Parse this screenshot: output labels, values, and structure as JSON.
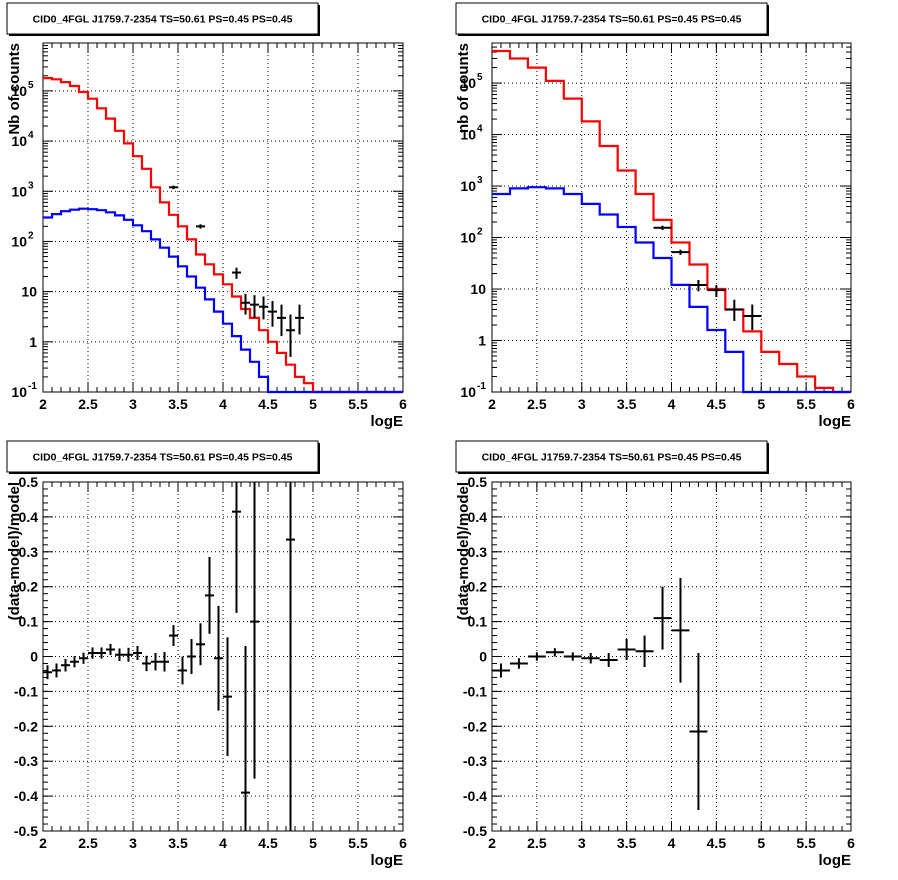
{
  "chart_data": [
    {
      "type": "line",
      "title": "CID0_4FGL J1759.7-2354 TS=50.61 PS=0.45 PS=0.45",
      "xlabel": "logE",
      "ylabel": "Nb of counts",
      "xlim": [
        2,
        6
      ],
      "ylim": [
        0.1,
        900000
      ],
      "yscale": "log",
      "grid": true,
      "xticks": [
        "2",
        "2.5",
        "3",
        "3.5",
        "4",
        "4.5",
        "5",
        "5.5",
        "6"
      ],
      "yticks": [
        {
          "value": 0.1,
          "base": "10",
          "exp": "-1"
        },
        {
          "value": 1,
          "base": "1",
          "exp": ""
        },
        {
          "value": 10,
          "base": "10",
          "exp": ""
        },
        {
          "value": 100,
          "base": "10",
          "exp": "2"
        },
        {
          "value": 1000,
          "base": "10",
          "exp": "3"
        },
        {
          "value": 10000,
          "base": "10",
          "exp": "4"
        },
        {
          "value": 100000,
          "base": "10",
          "exp": "5"
        }
      ],
      "series": [
        {
          "color": "#ff0000",
          "step": 0.1,
          "x_start": 2.0,
          "values": [
            180000,
            170000,
            150000,
            125000,
            95000,
            70000,
            45000,
            28000,
            16000,
            9000,
            5000,
            2800,
            1200,
            600,
            340,
            200,
            110,
            55,
            35,
            22,
            14,
            8,
            4.5,
            3,
            1.7,
            1,
            0.6,
            0.35,
            0.2,
            0.15,
            0.1,
            0.1,
            0.1,
            0.1,
            0.1,
            0.1,
            0.1,
            0.1,
            0.1,
            0.1
          ]
        },
        {
          "color": "#0000ff",
          "step": 0.1,
          "x_start": 2.0,
          "values": [
            300,
            350,
            400,
            430,
            450,
            440,
            420,
            380,
            330,
            270,
            210,
            160,
            110,
            75,
            50,
            32,
            20,
            12,
            7,
            4,
            2.3,
            1.3,
            0.7,
            0.4,
            0.2,
            0.1,
            0.1,
            0.1,
            0.1,
            0.1,
            0.1,
            0.1,
            0.1,
            0.1,
            0.1,
            0.1,
            0.1,
            0.1,
            0.1,
            0.1
          ]
        }
      ],
      "points": [
        {
          "x": 3.45,
          "y": 1200,
          "ylo": 1100,
          "yhi": 1300,
          "xerr": 0.05
        },
        {
          "x": 3.75,
          "y": 200,
          "ylo": 180,
          "yhi": 220,
          "xerr": 0.05
        },
        {
          "x": 4.15,
          "y": 24,
          "ylo": 18,
          "yhi": 30,
          "xerr": 0.05
        },
        {
          "x": 4.25,
          "y": 6,
          "ylo": 3.5,
          "yhi": 9,
          "xerr": 0.05
        },
        {
          "x": 4.35,
          "y": 5.5,
          "ylo": 3,
          "yhi": 8.5,
          "xerr": 0.05
        },
        {
          "x": 4.45,
          "y": 5,
          "ylo": 2.8,
          "yhi": 8,
          "xerr": 0.05
        },
        {
          "x": 4.55,
          "y": 4,
          "ylo": 2,
          "yhi": 6.5,
          "xerr": 0.05
        },
        {
          "x": 4.65,
          "y": 3,
          "ylo": 1.3,
          "yhi": 5.5,
          "xerr": 0.05
        },
        {
          "x": 4.75,
          "y": 1.7,
          "ylo": 0.5,
          "yhi": 3.5,
          "xerr": 0.05
        },
        {
          "x": 4.85,
          "y": 3,
          "ylo": 1.4,
          "yhi": 5.5,
          "xerr": 0.05
        }
      ]
    },
    {
      "type": "line",
      "title": "CID0_4FGL J1759.7-2354 TS=50.61 PS=0.45 PS=0.45",
      "xlabel": "logE",
      "ylabel": "nb of counts",
      "xlim": [
        2,
        6
      ],
      "ylim": [
        0.1,
        600000
      ],
      "yscale": "log",
      "grid": true,
      "xticks": [
        "2",
        "2.5",
        "3",
        "3.5",
        "4",
        "4.5",
        "5",
        "5.5",
        "6"
      ],
      "yticks": [
        {
          "value": 0.1,
          "base": "10",
          "exp": "-1"
        },
        {
          "value": 1,
          "base": "1",
          "exp": ""
        },
        {
          "value": 10,
          "base": "10",
          "exp": ""
        },
        {
          "value": 100,
          "base": "10",
          "exp": "2"
        },
        {
          "value": 1000,
          "base": "10",
          "exp": "3"
        },
        {
          "value": 10000,
          "base": "10",
          "exp": "4"
        },
        {
          "value": 100000,
          "base": "10",
          "exp": "5"
        }
      ],
      "series": [
        {
          "color": "#ff0000",
          "step": 0.2,
          "x_start": 2.0,
          "values": [
            420000,
            300000,
            200000,
            110000,
            50000,
            18000,
            6000,
            2000,
            700,
            220,
            80,
            30,
            10,
            4,
            1.5,
            0.6,
            0.35,
            0.2,
            0.12,
            0.1
          ]
        },
        {
          "color": "#0000ff",
          "step": 0.2,
          "x_start": 2.0,
          "values": [
            700,
            900,
            950,
            900,
            700,
            450,
            280,
            160,
            80,
            40,
            12,
            4.5,
            1.6,
            0.6,
            0.1,
            0.1,
            0.1,
            0.1,
            0.1,
            0.1
          ]
        }
      ],
      "points": [
        {
          "x": 3.9,
          "y": 155,
          "ylo": 140,
          "yhi": 170,
          "xerr": 0.1
        },
        {
          "x": 4.1,
          "y": 52,
          "ylo": 46,
          "yhi": 58,
          "xerr": 0.1
        },
        {
          "x": 4.3,
          "y": 12,
          "ylo": 9,
          "yhi": 15,
          "xerr": 0.1
        },
        {
          "x": 4.5,
          "y": 9.5,
          "ylo": 7,
          "yhi": 12,
          "xerr": 0.1
        },
        {
          "x": 4.7,
          "y": 4,
          "ylo": 2.4,
          "yhi": 6.2,
          "xerr": 0.1
        },
        {
          "x": 4.9,
          "y": 3,
          "ylo": 1.6,
          "yhi": 5,
          "xerr": 0.1
        }
      ]
    },
    {
      "type": "scatter",
      "title": "CID0_4FGL J1759.7-2354 TS=50.61 PS=0.45 PS=0.45",
      "xlabel": "logE",
      "ylabel": "(data-model)/model",
      "xlim": [
        2,
        6
      ],
      "ylim": [
        -0.5,
        0.5
      ],
      "yscale": "linear",
      "grid": true,
      "xticks": [
        "2",
        "2.5",
        "3",
        "3.5",
        "4",
        "4.5",
        "5",
        "5.5",
        "6"
      ],
      "yticks": [
        "0.5",
        "0.4",
        "0.3",
        "0.2",
        "0.1",
        "0",
        "-0.1",
        "-0.2",
        "-0.3",
        "-0.4",
        "-0.5"
      ],
      "points": [
        {
          "x": 2.05,
          "y": -0.045,
          "err": 0.02,
          "xerr": 0.05
        },
        {
          "x": 2.15,
          "y": -0.04,
          "err": 0.02,
          "xerr": 0.05
        },
        {
          "x": 2.25,
          "y": -0.025,
          "err": 0.018,
          "xerr": 0.05
        },
        {
          "x": 2.35,
          "y": -0.015,
          "err": 0.016,
          "xerr": 0.05
        },
        {
          "x": 2.45,
          "y": -0.005,
          "err": 0.016,
          "xerr": 0.05
        },
        {
          "x": 2.55,
          "y": 0.01,
          "err": 0.016,
          "xerr": 0.05
        },
        {
          "x": 2.65,
          "y": 0.01,
          "err": 0.016,
          "xerr": 0.05
        },
        {
          "x": 2.75,
          "y": 0.02,
          "err": 0.016,
          "xerr": 0.05
        },
        {
          "x": 2.85,
          "y": 0.005,
          "err": 0.018,
          "xerr": 0.05
        },
        {
          "x": 2.95,
          "y": 0.005,
          "err": 0.02,
          "xerr": 0.05
        },
        {
          "x": 3.05,
          "y": 0.01,
          "err": 0.02,
          "xerr": 0.05
        },
        {
          "x": 3.15,
          "y": -0.02,
          "err": 0.022,
          "xerr": 0.05
        },
        {
          "x": 3.25,
          "y": -0.015,
          "err": 0.025,
          "xerr": 0.05
        },
        {
          "x": 3.35,
          "y": -0.015,
          "err": 0.028,
          "xerr": 0.05
        },
        {
          "x": 3.45,
          "y": 0.06,
          "err": 0.03,
          "xerr": 0.05
        },
        {
          "x": 3.55,
          "y": -0.04,
          "err": 0.04,
          "xerr": 0.05
        },
        {
          "x": 3.65,
          "y": 0.0,
          "err": 0.05,
          "xerr": 0.05
        },
        {
          "x": 3.75,
          "y": 0.035,
          "err": 0.06,
          "xerr": 0.05
        },
        {
          "x": 3.85,
          "y": 0.175,
          "err": 0.11,
          "xerr": 0.05
        },
        {
          "x": 3.95,
          "y": -0.005,
          "err": 0.15,
          "xerr": 0.05
        },
        {
          "x": 4.05,
          "y": -0.115,
          "err": 0.17,
          "xerr": 0.05
        },
        {
          "x": 4.15,
          "y": 0.415,
          "err": 0.29,
          "xerr": 0.05
        },
        {
          "x": 4.25,
          "y": -0.39,
          "err": 0.42,
          "xerr": 0.05
        },
        {
          "x": 4.35,
          "y": 0.1,
          "err": 0.45,
          "xerr": 0.05
        },
        {
          "x": 4.75,
          "y": 0.335,
          "err": 1.0,
          "xerr": 0.05
        }
      ]
    },
    {
      "type": "scatter",
      "title": "CID0_4FGL J1759.7-2354 TS=50.61 PS=0.45 PS=0.45",
      "xlabel": "logE",
      "ylabel": "(data-model)/model",
      "xlim": [
        2,
        6
      ],
      "ylim": [
        -0.5,
        0.5
      ],
      "yscale": "linear",
      "grid": true,
      "xticks": [
        "2",
        "2.5",
        "3",
        "3.5",
        "4",
        "4.5",
        "5",
        "5.5",
        "6"
      ],
      "yticks": [
        "0.5",
        "0.4",
        "0.3",
        "0.2",
        "0.1",
        "0",
        "-0.1",
        "-0.2",
        "-0.3",
        "-0.4",
        "-0.5"
      ],
      "points": [
        {
          "x": 2.1,
          "y": -0.04,
          "err": 0.02,
          "xerr": 0.1
        },
        {
          "x": 2.3,
          "y": -0.02,
          "err": 0.015,
          "xerr": 0.1
        },
        {
          "x": 2.5,
          "y": 0.0,
          "err": 0.012,
          "xerr": 0.1
        },
        {
          "x": 2.7,
          "y": 0.012,
          "err": 0.012,
          "xerr": 0.1
        },
        {
          "x": 2.9,
          "y": 0.0,
          "err": 0.012,
          "xerr": 0.1
        },
        {
          "x": 3.1,
          "y": -0.005,
          "err": 0.015,
          "xerr": 0.1
        },
        {
          "x": 3.3,
          "y": -0.01,
          "err": 0.02,
          "xerr": 0.1
        },
        {
          "x": 3.5,
          "y": 0.02,
          "err": 0.03,
          "xerr": 0.1
        },
        {
          "x": 3.7,
          "y": 0.015,
          "err": 0.045,
          "xerr": 0.1
        },
        {
          "x": 3.9,
          "y": 0.11,
          "err": 0.09,
          "xerr": 0.1
        },
        {
          "x": 4.1,
          "y": 0.075,
          "err": 0.15,
          "xerr": 0.1
        },
        {
          "x": 4.3,
          "y": -0.215,
          "err": 0.225,
          "xerr": 0.1
        }
      ]
    }
  ]
}
